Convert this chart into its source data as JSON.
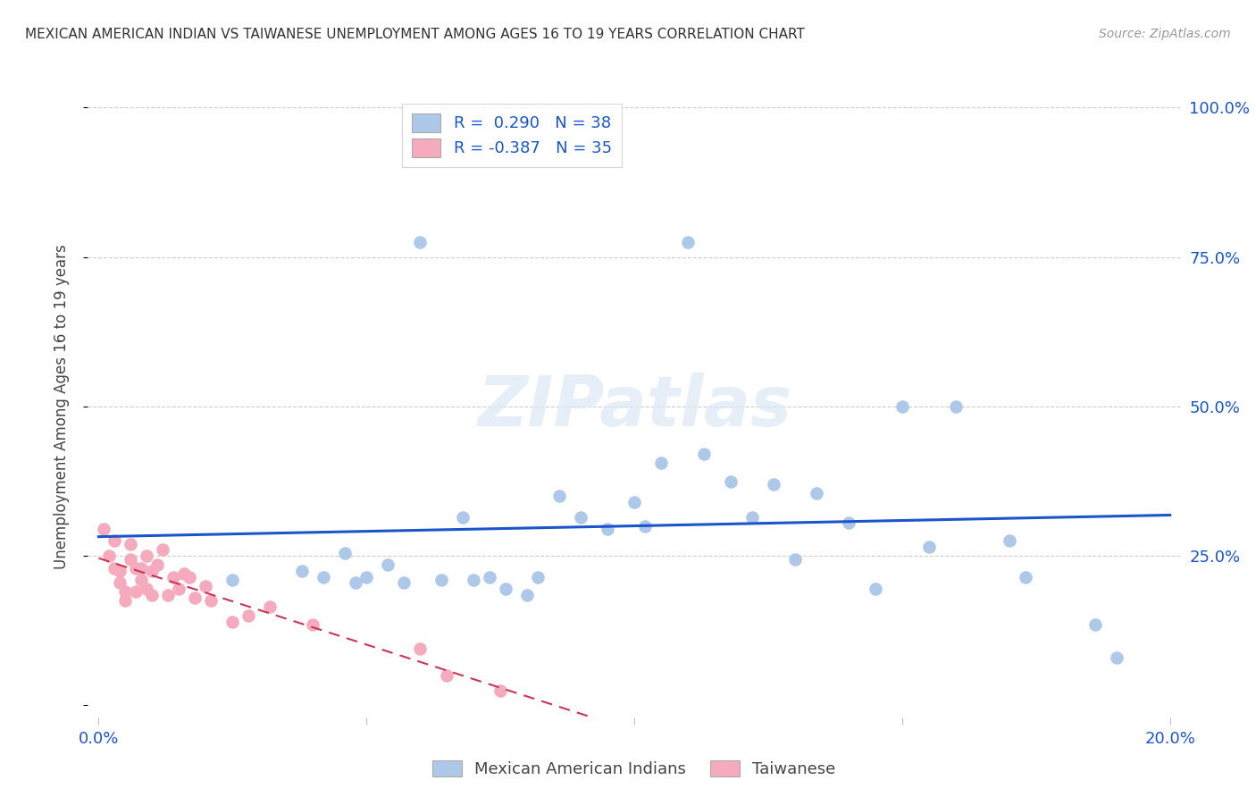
{
  "title": "MEXICAN AMERICAN INDIAN VS TAIWANESE UNEMPLOYMENT AMONG AGES 16 TO 19 YEARS CORRELATION CHART",
  "source": "Source: ZipAtlas.com",
  "ylabel": "Unemployment Among Ages 16 to 19 years",
  "xlim": [
    -0.002,
    0.202
  ],
  "ylim": [
    -0.02,
    1.02
  ],
  "blue_R": 0.29,
  "blue_N": 38,
  "pink_R": -0.387,
  "pink_N": 35,
  "blue_dot_color": "#adc8e8",
  "pink_dot_color": "#f5aabe",
  "blue_line_color": "#1a55cc",
  "pink_line_color": "#cc3355",
  "watermark": "ZIPatlas",
  "legend_label_blue": "Mexican American Indians",
  "legend_label_pink": "Taiwanese",
  "blue_x": [
    0.025,
    0.038,
    0.042,
    0.046,
    0.048,
    0.05,
    0.054,
    0.057,
    0.06,
    0.064,
    0.068,
    0.07,
    0.073,
    0.076,
    0.08,
    0.082,
    0.086,
    0.09,
    0.095,
    0.1,
    0.102,
    0.105,
    0.11,
    0.113,
    0.118,
    0.122,
    0.126,
    0.13,
    0.134,
    0.14,
    0.145,
    0.15,
    0.155,
    0.16,
    0.17,
    0.173,
    0.186,
    0.19
  ],
  "blue_y": [
    0.21,
    0.225,
    0.215,
    0.255,
    0.205,
    0.215,
    0.235,
    0.205,
    0.775,
    0.21,
    0.315,
    0.21,
    0.215,
    0.195,
    0.185,
    0.215,
    0.35,
    0.315,
    0.295,
    0.34,
    0.3,
    0.405,
    0.775,
    0.42,
    0.375,
    0.315,
    0.37,
    0.245,
    0.355,
    0.305,
    0.195,
    0.5,
    0.265,
    0.5,
    0.275,
    0.215,
    0.135,
    0.08
  ],
  "pink_x": [
    0.001,
    0.002,
    0.003,
    0.003,
    0.004,
    0.004,
    0.005,
    0.005,
    0.006,
    0.006,
    0.007,
    0.007,
    0.008,
    0.008,
    0.009,
    0.009,
    0.01,
    0.01,
    0.011,
    0.012,
    0.013,
    0.014,
    0.015,
    0.016,
    0.017,
    0.018,
    0.02,
    0.021,
    0.025,
    0.028,
    0.032,
    0.04,
    0.06,
    0.065,
    0.075
  ],
  "pink_y": [
    0.295,
    0.25,
    0.275,
    0.23,
    0.225,
    0.205,
    0.19,
    0.175,
    0.27,
    0.245,
    0.23,
    0.19,
    0.23,
    0.21,
    0.25,
    0.195,
    0.185,
    0.225,
    0.235,
    0.26,
    0.185,
    0.215,
    0.195,
    0.22,
    0.215,
    0.18,
    0.2,
    0.175,
    0.14,
    0.15,
    0.165,
    0.135,
    0.095,
    0.05,
    0.025
  ]
}
